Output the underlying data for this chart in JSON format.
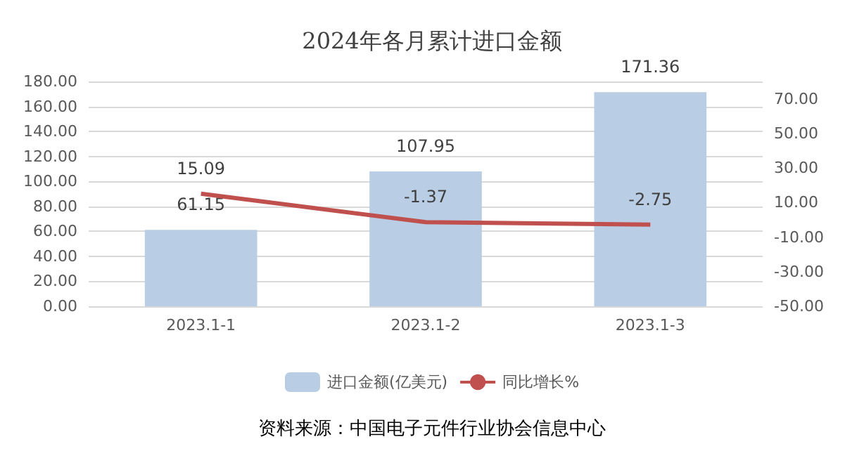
{
  "chart_data": {
    "type": "bar",
    "title": "2024年各月累计进口金额",
    "categories": [
      "2023.1-1",
      "2023.1-2",
      "2023.1-3"
    ],
    "series": [
      {
        "name": "进口金额(亿美元)",
        "color": "#b9cde5",
        "values": [
          61.15,
          107.95,
          171.36
        ]
      },
      {
        "name": "同比增长%",
        "type": "line",
        "axis": "y2",
        "color": "#c0504d",
        "values": [
          15.09,
          -1.37,
          -2.75
        ]
      }
    ],
    "ylim": [
      0,
      180
    ],
    "yticks": [
      {
        "value": 0,
        "label": "0.00"
      },
      {
        "value": 20,
        "label": "20.00"
      },
      {
        "value": 40,
        "label": "40.00"
      },
      {
        "value": 60,
        "label": "60.00"
      },
      {
        "value": 80,
        "label": "80.00"
      },
      {
        "value": 100,
        "label": "100.00"
      },
      {
        "value": 120,
        "label": "120.00"
      },
      {
        "value": 140,
        "label": "140.00"
      },
      {
        "value": 160,
        "label": "160.00"
      },
      {
        "value": 180,
        "label": "180.00"
      }
    ],
    "y2lim": [
      -50,
      80
    ],
    "y2ticks": [
      {
        "value": -50,
        "label": "-50.00"
      },
      {
        "value": -30,
        "label": "-30.00"
      },
      {
        "value": -10,
        "label": "-10.00"
      },
      {
        "value": 10,
        "label": "10.00"
      },
      {
        "value": 30,
        "label": "30.00"
      },
      {
        "value": 50,
        "label": "50.00"
      },
      {
        "value": 70,
        "label": "70.00"
      }
    ],
    "grid": "y",
    "legend": "bottom",
    "data_labels": true,
    "marker": "none",
    "annotations": [
      "资料来源：中国电子元件行业协会信息中心"
    ]
  }
}
